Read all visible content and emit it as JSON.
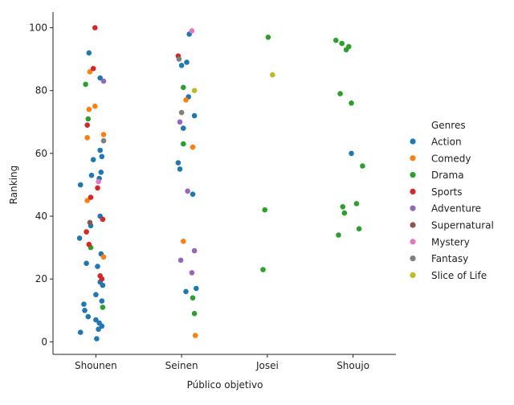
{
  "chart_data": {
    "type": "scatter",
    "title": "",
    "xlabel": "Público objetivo",
    "ylabel": "Ranking",
    "categories": [
      "Shounen",
      "Seinen",
      "Josei",
      "Shoujo"
    ],
    "ylim": [
      -4,
      105
    ],
    "yticks": [
      0,
      20,
      40,
      60,
      80,
      100
    ],
    "grid": false,
    "legend": {
      "title": "Genres",
      "placement": "right"
    },
    "series": [
      {
        "name": "Action",
        "color": "#1f77b4",
        "points": [
          {
            "cat": "Shounen",
            "jitter": -0.08,
            "y": 92
          },
          {
            "cat": "Shounen",
            "jitter": 0.05,
            "y": 84
          },
          {
            "cat": "Shounen",
            "jitter": -0.03,
            "y": 58
          },
          {
            "cat": "Shounen",
            "jitter": 0.07,
            "y": 59
          },
          {
            "cat": "Shounen",
            "jitter": 0.05,
            "y": 61
          },
          {
            "cat": "Shounen",
            "jitter": 0.06,
            "y": 54
          },
          {
            "cat": "Shounen",
            "jitter": -0.05,
            "y": 53
          },
          {
            "cat": "Shounen",
            "jitter": 0.04,
            "y": 52
          },
          {
            "cat": "Shounen",
            "jitter": -0.18,
            "y": 50
          },
          {
            "cat": "Shounen",
            "jitter": 0.05,
            "y": 40
          },
          {
            "cat": "Shounen",
            "jitter": -0.06,
            "y": 37
          },
          {
            "cat": "Shounen",
            "jitter": -0.19,
            "y": 33
          },
          {
            "cat": "Shounen",
            "jitter": 0.06,
            "y": 28
          },
          {
            "cat": "Shounen",
            "jitter": -0.11,
            "y": 25
          },
          {
            "cat": "Shounen",
            "jitter": 0.02,
            "y": 24
          },
          {
            "cat": "Shounen",
            "jitter": 0.0,
            "y": 15
          },
          {
            "cat": "Shounen",
            "jitter": 0.05,
            "y": 19
          },
          {
            "cat": "Shounen",
            "jitter": 0.08,
            "y": 18
          },
          {
            "cat": "Shounen",
            "jitter": 0.07,
            "y": 13
          },
          {
            "cat": "Shounen",
            "jitter": -0.14,
            "y": 12
          },
          {
            "cat": "Shounen",
            "jitter": -0.13,
            "y": 10
          },
          {
            "cat": "Shounen",
            "jitter": -0.09,
            "y": 8
          },
          {
            "cat": "Shounen",
            "jitter": 0.0,
            "y": 7
          },
          {
            "cat": "Shounen",
            "jitter": 0.04,
            "y": 6
          },
          {
            "cat": "Shounen",
            "jitter": 0.07,
            "y": 5
          },
          {
            "cat": "Shounen",
            "jitter": 0.03,
            "y": 4
          },
          {
            "cat": "Shounen",
            "jitter": -0.18,
            "y": 3
          },
          {
            "cat": "Shounen",
            "jitter": 0.01,
            "y": 1
          },
          {
            "cat": "Seinen",
            "jitter": 0.09,
            "y": 98
          },
          {
            "cat": "Seinen",
            "jitter": 0.06,
            "y": 89
          },
          {
            "cat": "Seinen",
            "jitter": 0.0,
            "y": 88
          },
          {
            "cat": "Seinen",
            "jitter": 0.08,
            "y": 78
          },
          {
            "cat": "Seinen",
            "jitter": 0.15,
            "y": 72
          },
          {
            "cat": "Seinen",
            "jitter": 0.02,
            "y": 68
          },
          {
            "cat": "Seinen",
            "jitter": -0.04,
            "y": 57
          },
          {
            "cat": "Seinen",
            "jitter": -0.02,
            "y": 55
          },
          {
            "cat": "Seinen",
            "jitter": 0.13,
            "y": 47
          },
          {
            "cat": "Seinen",
            "jitter": 0.17,
            "y": 17
          },
          {
            "cat": "Seinen",
            "jitter": 0.05,
            "y": 16
          },
          {
            "cat": "Shoujo",
            "jitter": -0.02,
            "y": 60
          }
        ]
      },
      {
        "name": "Comedy",
        "color": "#ff7f0e",
        "points": [
          {
            "cat": "Shounen",
            "jitter": -0.07,
            "y": 86
          },
          {
            "cat": "Shounen",
            "jitter": -0.01,
            "y": 75
          },
          {
            "cat": "Shounen",
            "jitter": -0.08,
            "y": 74
          },
          {
            "cat": "Shounen",
            "jitter": 0.09,
            "y": 66
          },
          {
            "cat": "Shounen",
            "jitter": -0.1,
            "y": 65
          },
          {
            "cat": "Shounen",
            "jitter": -0.1,
            "y": 45
          },
          {
            "cat": "Shounen",
            "jitter": 0.09,
            "y": 27
          },
          {
            "cat": "Seinen",
            "jitter": 0.05,
            "y": 77
          },
          {
            "cat": "Seinen",
            "jitter": 0.13,
            "y": 62
          },
          {
            "cat": "Seinen",
            "jitter": 0.02,
            "y": 32
          },
          {
            "cat": "Seinen",
            "jitter": 0.16,
            "y": 2
          }
        ]
      },
      {
        "name": "Drama",
        "color": "#2ca02c",
        "points": [
          {
            "cat": "Shounen",
            "jitter": -0.12,
            "y": 82
          },
          {
            "cat": "Shounen",
            "jitter": -0.09,
            "y": 71
          },
          {
            "cat": "Shounen",
            "jitter": -0.06,
            "y": 30
          },
          {
            "cat": "Shounen",
            "jitter": 0.08,
            "y": 11
          },
          {
            "cat": "Seinen",
            "jitter": 0.02,
            "y": 81
          },
          {
            "cat": "Seinen",
            "jitter": 0.02,
            "y": 63
          },
          {
            "cat": "Seinen",
            "jitter": 0.13,
            "y": 14
          },
          {
            "cat": "Seinen",
            "jitter": 0.15,
            "y": 9
          },
          {
            "cat": "Josei",
            "jitter": 0.01,
            "y": 97
          },
          {
            "cat": "Josei",
            "jitter": -0.03,
            "y": 42
          },
          {
            "cat": "Josei",
            "jitter": -0.05,
            "y": 23
          },
          {
            "cat": "Shoujo",
            "jitter": -0.2,
            "y": 96
          },
          {
            "cat": "Shoujo",
            "jitter": -0.13,
            "y": 95
          },
          {
            "cat": "Shoujo",
            "jitter": -0.05,
            "y": 94
          },
          {
            "cat": "Shoujo",
            "jitter": -0.08,
            "y": 93
          },
          {
            "cat": "Shoujo",
            "jitter": -0.15,
            "y": 79
          },
          {
            "cat": "Shoujo",
            "jitter": -0.02,
            "y": 76
          },
          {
            "cat": "Shoujo",
            "jitter": 0.11,
            "y": 56
          },
          {
            "cat": "Shoujo",
            "jitter": 0.04,
            "y": 44
          },
          {
            "cat": "Shoujo",
            "jitter": -0.12,
            "y": 43
          },
          {
            "cat": "Shoujo",
            "jitter": -0.1,
            "y": 41
          },
          {
            "cat": "Shoujo",
            "jitter": 0.07,
            "y": 36
          },
          {
            "cat": "Shoujo",
            "jitter": -0.17,
            "y": 34
          }
        ]
      },
      {
        "name": "Sports",
        "color": "#d62728",
        "points": [
          {
            "cat": "Shounen",
            "jitter": -0.01,
            "y": 100
          },
          {
            "cat": "Shounen",
            "jitter": -0.03,
            "y": 87
          },
          {
            "cat": "Shounen",
            "jitter": -0.1,
            "y": 69
          },
          {
            "cat": "Shounen",
            "jitter": 0.02,
            "y": 49
          },
          {
            "cat": "Shounen",
            "jitter": -0.06,
            "y": 46
          },
          {
            "cat": "Shounen",
            "jitter": 0.08,
            "y": 39
          },
          {
            "cat": "Shounen",
            "jitter": -0.11,
            "y": 35
          },
          {
            "cat": "Shounen",
            "jitter": -0.08,
            "y": 31
          },
          {
            "cat": "Shounen",
            "jitter": 0.05,
            "y": 21
          },
          {
            "cat": "Shounen",
            "jitter": 0.07,
            "y": 20
          },
          {
            "cat": "Seinen",
            "jitter": -0.04,
            "y": 91
          }
        ]
      },
      {
        "name": "Adventure",
        "color": "#9467bd",
        "points": [
          {
            "cat": "Shounen",
            "jitter": 0.09,
            "y": 83
          },
          {
            "cat": "Seinen",
            "jitter": -0.02,
            "y": 70
          },
          {
            "cat": "Seinen",
            "jitter": 0.07,
            "y": 48
          },
          {
            "cat": "Seinen",
            "jitter": 0.15,
            "y": 29
          },
          {
            "cat": "Seinen",
            "jitter": -0.01,
            "y": 26
          },
          {
            "cat": "Seinen",
            "jitter": 0.12,
            "y": 22
          }
        ]
      },
      {
        "name": "Supernatural",
        "color": "#8c564b",
        "points": [
          {
            "cat": "Shounen",
            "jitter": -0.07,
            "y": 38
          }
        ]
      },
      {
        "name": "Mystery",
        "color": "#e377c2",
        "points": [
          {
            "cat": "Shounen",
            "jitter": 0.03,
            "y": 51
          },
          {
            "cat": "Seinen",
            "jitter": 0.12,
            "y": 99
          }
        ]
      },
      {
        "name": "Fantasy",
        "color": "#7f7f7f",
        "points": [
          {
            "cat": "Shounen",
            "jitter": 0.09,
            "y": 64
          },
          {
            "cat": "Seinen",
            "jitter": -0.03,
            "y": 90
          },
          {
            "cat": "Seinen",
            "jitter": 0.0,
            "y": 73
          }
        ]
      },
      {
        "name": "Slice of Life",
        "color": "#bcbd22",
        "points": [
          {
            "cat": "Seinen",
            "jitter": 0.15,
            "y": 80
          },
          {
            "cat": "Josei",
            "jitter": 0.06,
            "y": 85
          }
        ]
      }
    ]
  }
}
